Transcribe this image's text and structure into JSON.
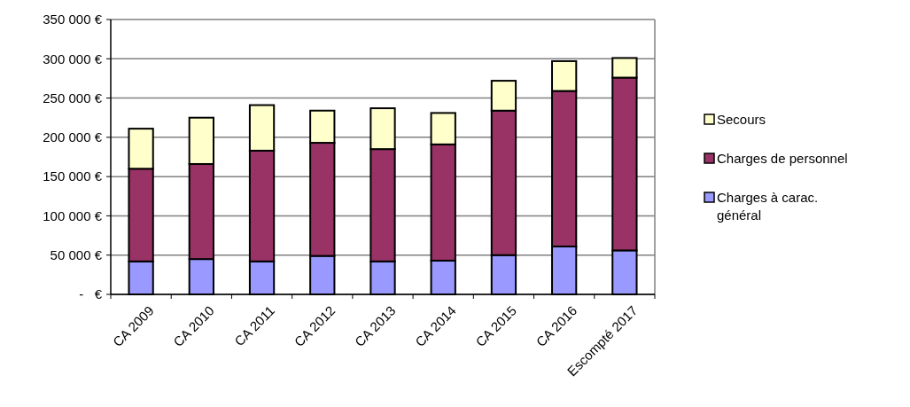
{
  "chart_data": {
    "type": "bar",
    "stacked": true,
    "categories": [
      "CA 2009",
      "CA 2010",
      "CA 2011",
      "CA 2012",
      "CA 2013",
      "CA 2014",
      "CA 2015",
      "CA 2016",
      "Escompté 2017"
    ],
    "series": [
      {
        "name": "Charges à carac. général",
        "color": "#9999ff",
        "values": [
          42000,
          45000,
          42000,
          49000,
          42000,
          43000,
          50000,
          61000,
          56000
        ]
      },
      {
        "name": "Charges de personnel",
        "color": "#993366",
        "values": [
          118000,
          121000,
          141000,
          144000,
          143000,
          148000,
          184000,
          198000,
          220000
        ]
      },
      {
        "name": "Secours",
        "color": "#ffffcc",
        "values": [
          51000,
          59000,
          58000,
          41000,
          52000,
          40000,
          38000,
          38000,
          25000
        ]
      }
    ],
    "ylim": [
      0,
      350000
    ],
    "yticks": [
      {
        "value": 0,
        "label": "-   €"
      },
      {
        "value": 50000,
        "label": "50 000 €"
      },
      {
        "value": 100000,
        "label": "100 000 €"
      },
      {
        "value": 150000,
        "label": "150 000 €"
      },
      {
        "value": 200000,
        "label": "200 000 €"
      },
      {
        "value": 250000,
        "label": "250 000 €"
      },
      {
        "value": 300000,
        "label": "300 000 €"
      },
      {
        "value": 350000,
        "label": "350 000 €"
      }
    ],
    "grid": "y",
    "legend": "right"
  }
}
